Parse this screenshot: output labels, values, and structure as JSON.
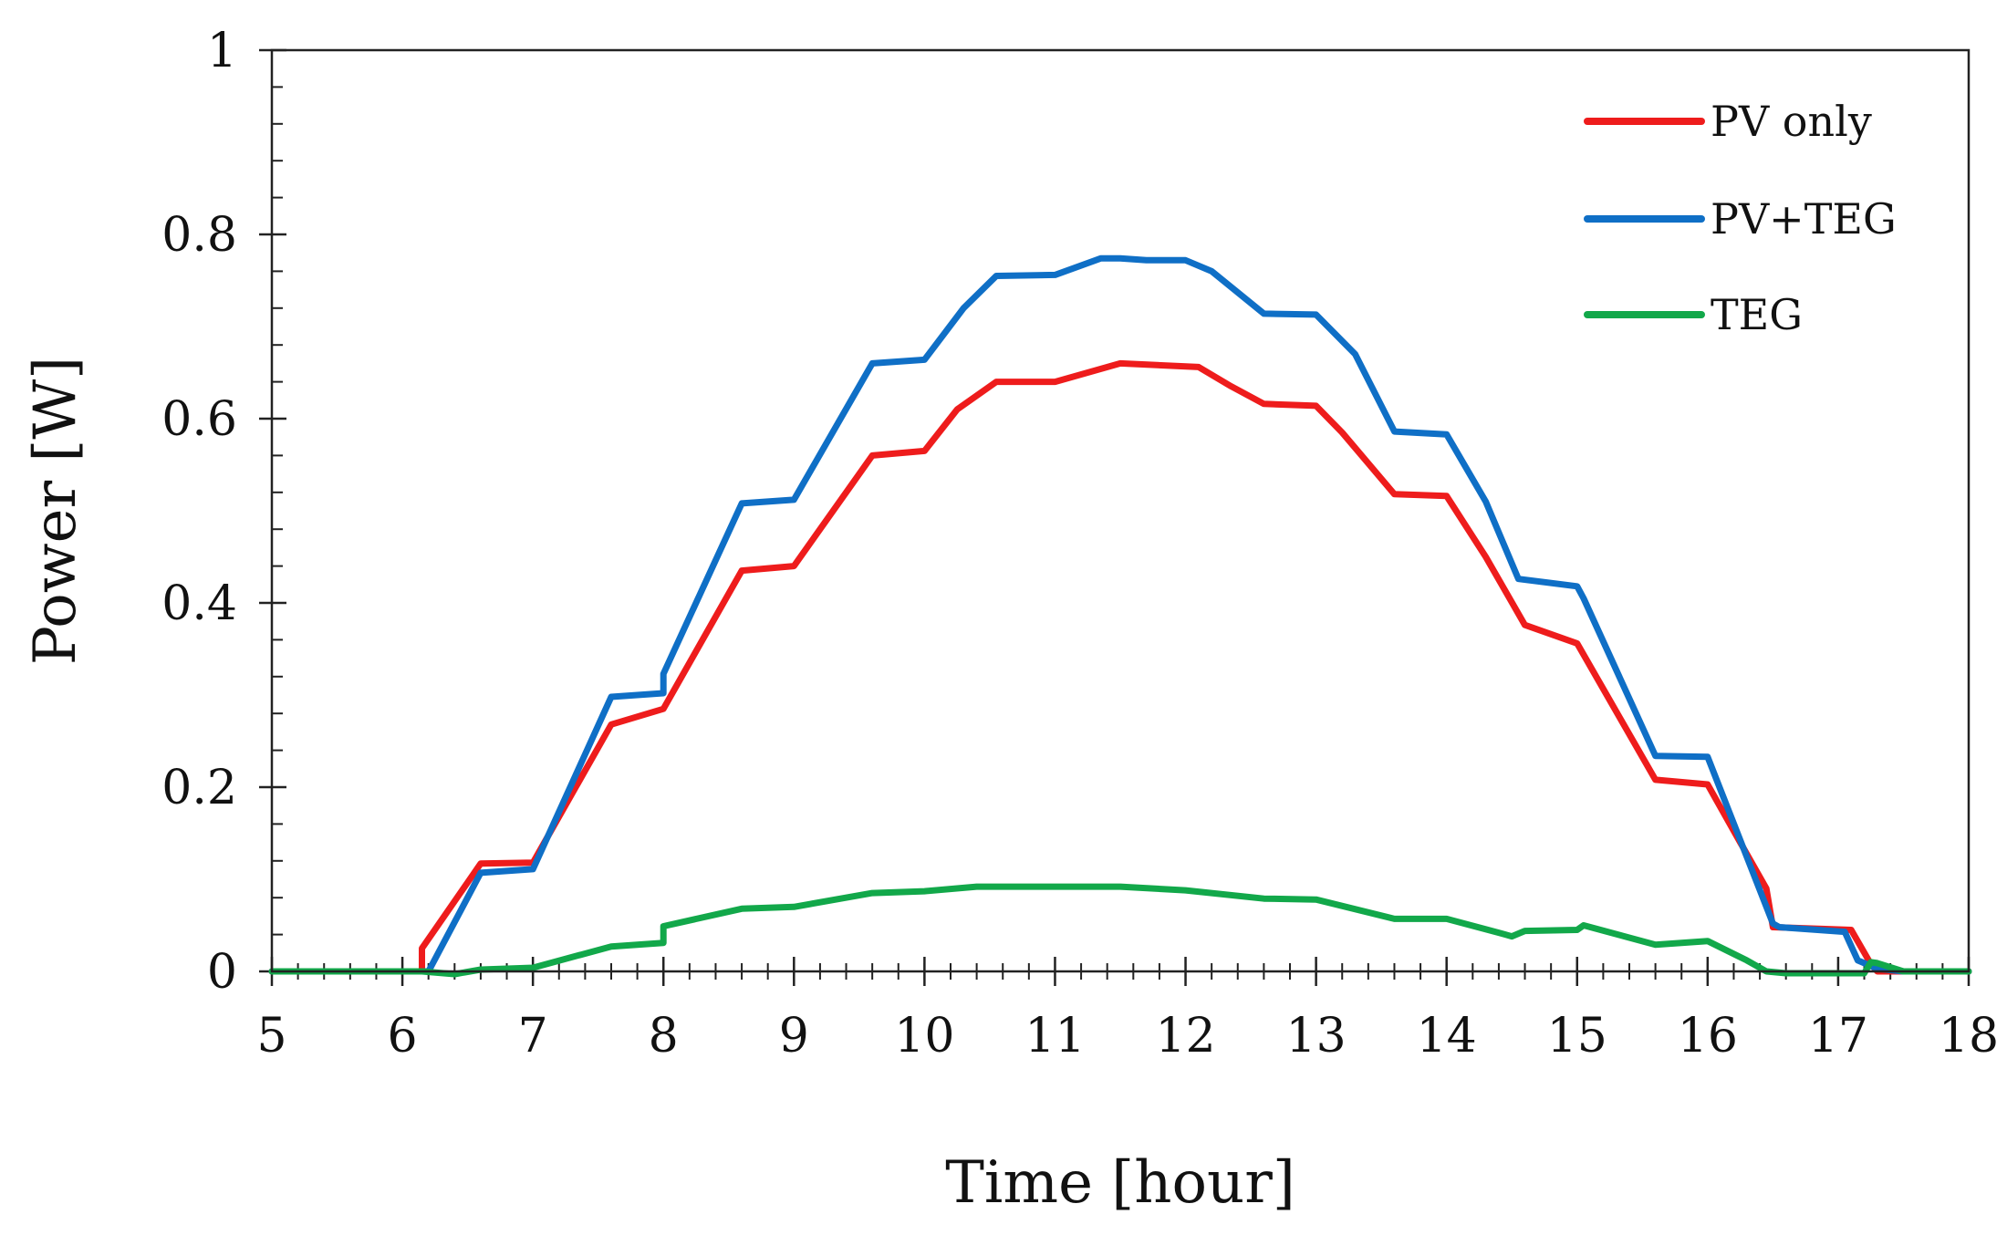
{
  "chart_data": {
    "type": "line",
    "title": "",
    "xlabel": "Time [hour]",
    "ylabel": "Power [W]",
    "xlim": [
      5,
      18
    ],
    "ylim": [
      0,
      1
    ],
    "xticks": [
      "5",
      "6",
      "7",
      "8",
      "9",
      "10",
      "11",
      "12",
      "13",
      "14",
      "15",
      "16",
      "17",
      "18"
    ],
    "yticks": [
      "0",
      "0.2",
      "0.4",
      "0.6",
      "0.8",
      "1"
    ],
    "x_minor_step": 0.2,
    "y_minor_step": 0.04,
    "grid": false,
    "legend_position": "top-right",
    "series": [
      {
        "name": "PV only",
        "color": "#ee1c1c",
        "x": [
          5,
          6.15,
          6.15,
          6.6,
          7.0,
          7.6,
          8.0,
          8.6,
          9.0,
          9.6,
          10.0,
          10.25,
          10.55,
          11.0,
          11.5,
          12.1,
          12.35,
          12.6,
          13.0,
          13.2,
          13.6,
          14.0,
          14.3,
          14.6,
          15.0,
          15.6,
          16.0,
          16.25,
          16.45,
          16.5,
          17.1,
          17.25,
          17.3,
          17.5,
          18
        ],
        "y": [
          0,
          0,
          0.025,
          0.117,
          0.118,
          0.268,
          0.285,
          0.435,
          0.44,
          0.56,
          0.565,
          0.61,
          0.64,
          0.64,
          0.66,
          0.656,
          0.635,
          0.616,
          0.614,
          0.585,
          0.518,
          0.516,
          0.45,
          0.376,
          0.356,
          0.208,
          0.203,
          0.14,
          0.09,
          0.048,
          0.045,
          0.008,
          0,
          0,
          0
        ]
      },
      {
        "name": "PV+TEG",
        "color": "#0f6fc6",
        "x": [
          5,
          6.15,
          6.2,
          6.6,
          7.0,
          7.6,
          8.0,
          8.0,
          8.6,
          9.0,
          9.6,
          10.0,
          10.3,
          10.55,
          11.0,
          11.35,
          11.5,
          11.7,
          12.0,
          12.2,
          12.6,
          13.0,
          13.3,
          13.6,
          14.0,
          14.3,
          14.55,
          15.0,
          15.05,
          15.6,
          16.0,
          16.5,
          16.55,
          17.05,
          17.15,
          17.3,
          17.5,
          18
        ],
        "y": [
          0,
          0,
          0,
          0.107,
          0.111,
          0.298,
          0.302,
          0.323,
          0.508,
          0.512,
          0.66,
          0.664,
          0.72,
          0.755,
          0.756,
          0.774,
          0.774,
          0.772,
          0.772,
          0.76,
          0.714,
          0.713,
          0.67,
          0.586,
          0.583,
          0.51,
          0.426,
          0.418,
          0.405,
          0.234,
          0.233,
          0.052,
          0.048,
          0.043,
          0.012,
          0.003,
          0,
          0
        ]
      },
      {
        "name": "TEG",
        "color": "#12a84a",
        "x": [
          5,
          6.15,
          6.4,
          6.6,
          7.0,
          7.6,
          8.0,
          8.0,
          8.6,
          9.0,
          9.6,
          10.0,
          10.4,
          11.0,
          11.5,
          12.0,
          12.6,
          13.0,
          13.6,
          14.0,
          14.4,
          14.5,
          14.6,
          15.0,
          15.05,
          15.6,
          16.0,
          16.3,
          16.45,
          16.6,
          17.2,
          17.25,
          17.3,
          17.5,
          18
        ],
        "y": [
          0,
          0,
          -0.003,
          0.002,
          0.004,
          0.027,
          0.031,
          0.049,
          0.068,
          0.07,
          0.085,
          0.087,
          0.092,
          0.092,
          0.092,
          0.088,
          0.079,
          0.078,
          0.057,
          0.057,
          0.042,
          0.038,
          0.044,
          0.045,
          0.05,
          0.029,
          0.033,
          0.012,
          0,
          -0.002,
          -0.002,
          0.01,
          0.009,
          0,
          0
        ]
      }
    ]
  }
}
